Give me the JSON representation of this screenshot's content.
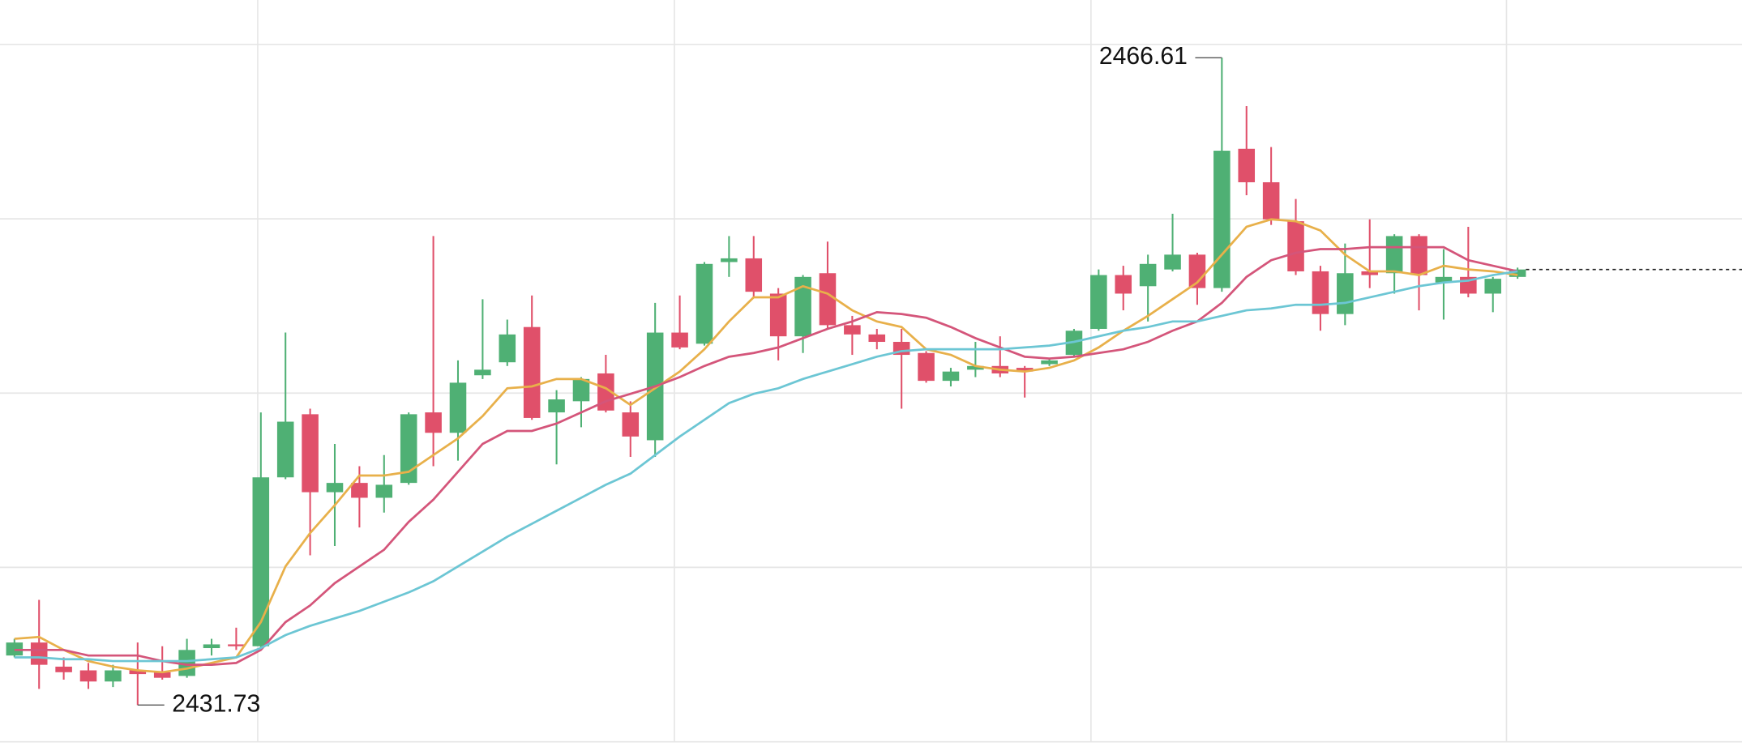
{
  "chart_data": {
    "type": "candlestick",
    "up_color": "#4fb074",
    "down_color": "#e0506a",
    "ylim": [
      2429.04,
      2469.72
    ],
    "yticks": [
      2467.33,
      2457.93,
      2448.54,
      2439.15,
      2429.75
    ],
    "grid": true,
    "open": [
      2434.4,
      2435.1,
      2433.8,
      2433.6,
      2433.0,
      2433.6,
      2433.5,
      2433.3,
      2434.8,
      2435.0,
      2434.9,
      2444.0,
      2447.4,
      2443.2,
      2443.7,
      2442.9,
      2443.7,
      2447.5,
      2446.4,
      2449.5,
      2450.2,
      2452.1,
      2447.5,
      2448.1,
      2449.6,
      2447.5,
      2446.0,
      2451.8,
      2451.2,
      2455.6,
      2455.8,
      2453.9,
      2451.6,
      2455.0,
      2452.2,
      2451.7,
      2451.3,
      2450.7,
      2449.2,
      2449.8,
      2450.0,
      2449.9,
      2450.1,
      2450.6,
      2452.0,
      2454.9,
      2454.3,
      2455.2,
      2456.0,
      2454.2,
      2461.7,
      2459.9,
      2457.8,
      2455.1,
      2452.8,
      2455.1,
      2455.0,
      2457.0,
      2454.5,
      2454.8,
      2453.9,
      2454.8
    ],
    "high": [
      2435.3,
      2437.4,
      2434.3,
      2434.0,
      2433.9,
      2435.1,
      2434.9,
      2435.3,
      2435.3,
      2435.9,
      2447.5,
      2451.8,
      2447.7,
      2445.8,
      2444.6,
      2445.2,
      2447.5,
      2457.0,
      2450.3,
      2453.6,
      2452.5,
      2453.8,
      2448.7,
      2449.4,
      2450.6,
      2448.1,
      2453.4,
      2453.8,
      2455.6,
      2457.0,
      2457.0,
      2454.2,
      2454.9,
      2456.7,
      2452.7,
      2452.0,
      2452.0,
      2450.8,
      2449.9,
      2451.3,
      2451.6,
      2450.0,
      2450.4,
      2452.0,
      2455.2,
      2455.4,
      2456.0,
      2458.2,
      2456.1,
      2466.61,
      2464.0,
      2461.8,
      2459.0,
      2455.4,
      2456.6,
      2457.9,
      2457.1,
      2457.1,
      2456.3,
      2457.5,
      2454.8,
      2455.3
    ],
    "low": [
      2434.3,
      2432.6,
      2433.1,
      2432.6,
      2432.7,
      2431.73,
      2433.1,
      2433.2,
      2434.4,
      2434.7,
      2434.7,
      2443.9,
      2439.8,
      2440.3,
      2441.3,
      2442.1,
      2443.6,
      2444.6,
      2444.9,
      2449.3,
      2450.0,
      2447.1,
      2444.7,
      2446.7,
      2447.5,
      2445.1,
      2445.1,
      2450.9,
      2451.1,
      2454.8,
      2453.7,
      2450.3,
      2450.7,
      2452.0,
      2450.6,
      2450.9,
      2447.7,
      2449.1,
      2448.9,
      2449.4,
      2449.4,
      2448.3,
      2450.0,
      2450.5,
      2451.9,
      2453.0,
      2452.4,
      2455.1,
      2453.3,
      2454.0,
      2459.2,
      2457.6,
      2454.9,
      2451.9,
      2452.2,
      2454.2,
      2453.9,
      2453.0,
      2452.5,
      2453.7,
      2452.9,
      2454.7
    ],
    "close": [
      2435.1,
      2433.9,
      2433.5,
      2433.0,
      2433.6,
      2433.4,
      2433.2,
      2434.7,
      2435.0,
      2434.9,
      2444.0,
      2447.0,
      2443.2,
      2443.7,
      2442.9,
      2443.6,
      2447.4,
      2446.4,
      2449.1,
      2449.8,
      2451.7,
      2447.2,
      2448.2,
      2449.3,
      2447.6,
      2446.2,
      2451.8,
      2451.0,
      2455.5,
      2455.8,
      2454.0,
      2451.6,
      2454.8,
      2452.2,
      2451.7,
      2451.3,
      2450.6,
      2449.2,
      2449.7,
      2450.0,
      2449.6,
      2449.7,
      2450.3,
      2451.9,
      2454.9,
      2453.9,
      2455.5,
      2456.0,
      2454.2,
      2461.6,
      2459.9,
      2457.9,
      2455.1,
      2452.8,
      2455.0,
      2454.9,
      2457.0,
      2454.9,
      2454.8,
      2453.9,
      2454.7,
      2455.2
    ],
    "series": [
      {
        "color": "#e8b04a",
        "values": [
          2435.3,
          2435.4,
          2434.7,
          2434.1,
          2433.8,
          2433.6,
          2433.5,
          2433.7,
          2434.0,
          2434.3,
          2436.2,
          2439.2,
          2441.0,
          2442.5,
          2444.1,
          2444.1,
          2444.3,
          2445.2,
          2446.1,
          2447.3,
          2448.8,
          2448.9,
          2449.3,
          2449.3,
          2448.8,
          2447.9,
          2448.8,
          2449.7,
          2450.9,
          2452.4,
          2453.7,
          2453.7,
          2454.3,
          2453.9,
          2453.0,
          2452.4,
          2452.1,
          2450.9,
          2450.6,
          2450.0,
          2449.8,
          2449.7,
          2449.9,
          2450.3,
          2451.0,
          2451.9,
          2452.7,
          2453.6,
          2454.5,
          2456.0,
          2457.5,
          2457.9,
          2457.8,
          2457.3,
          2456.0,
          2455.1,
          2455.1,
          2454.9,
          2455.4,
          2455.2,
          2455.1,
          2454.9
        ]
      },
      {
        "color": "#d4557a",
        "values": [
          2434.7,
          2434.7,
          2434.7,
          2434.4,
          2434.4,
          2434.4,
          2434.1,
          2433.9,
          2433.9,
          2434.0,
          2434.7,
          2436.2,
          2437.1,
          2438.3,
          2439.2,
          2440.1,
          2441.6,
          2442.8,
          2444.3,
          2445.8,
          2446.5,
          2446.5,
          2446.9,
          2447.5,
          2448.1,
          2448.5,
          2448.9,
          2449.4,
          2450.0,
          2450.5,
          2450.7,
          2451.0,
          2451.5,
          2452.0,
          2452.4,
          2452.9,
          2452.8,
          2452.6,
          2452.1,
          2451.5,
          2451.0,
          2450.5,
          2450.4,
          2450.5,
          2450.7,
          2450.9,
          2451.3,
          2451.9,
          2452.4,
          2453.4,
          2454.8,
          2455.7,
          2456.1,
          2456.3,
          2456.3,
          2456.4,
          2456.4,
          2456.4,
          2456.4,
          2455.7,
          2455.4,
          2455.1
        ]
      },
      {
        "color": "#6cc6d4",
        "values": [
          2434.3,
          2434.3,
          2434.2,
          2434.2,
          2434.1,
          2434.1,
          2434.1,
          2434.1,
          2434.2,
          2434.3,
          2434.8,
          2435.5,
          2436.0,
          2436.4,
          2436.8,
          2437.3,
          2437.8,
          2438.4,
          2439.2,
          2440.0,
          2440.8,
          2441.5,
          2442.2,
          2442.9,
          2443.6,
          2444.2,
          2445.2,
          2446.2,
          2447.1,
          2448.0,
          2448.5,
          2448.8,
          2449.3,
          2449.7,
          2450.1,
          2450.5,
          2450.8,
          2450.9,
          2450.9,
          2450.9,
          2450.9,
          2451.0,
          2451.1,
          2451.3,
          2451.6,
          2451.9,
          2452.1,
          2452.4,
          2452.4,
          2452.7,
          2453.0,
          2453.1,
          2453.3,
          2453.3,
          2453.4,
          2453.7,
          2454.0,
          2454.3,
          2454.5,
          2454.6,
          2454.9,
          2455.1
        ]
      }
    ]
  }
}
